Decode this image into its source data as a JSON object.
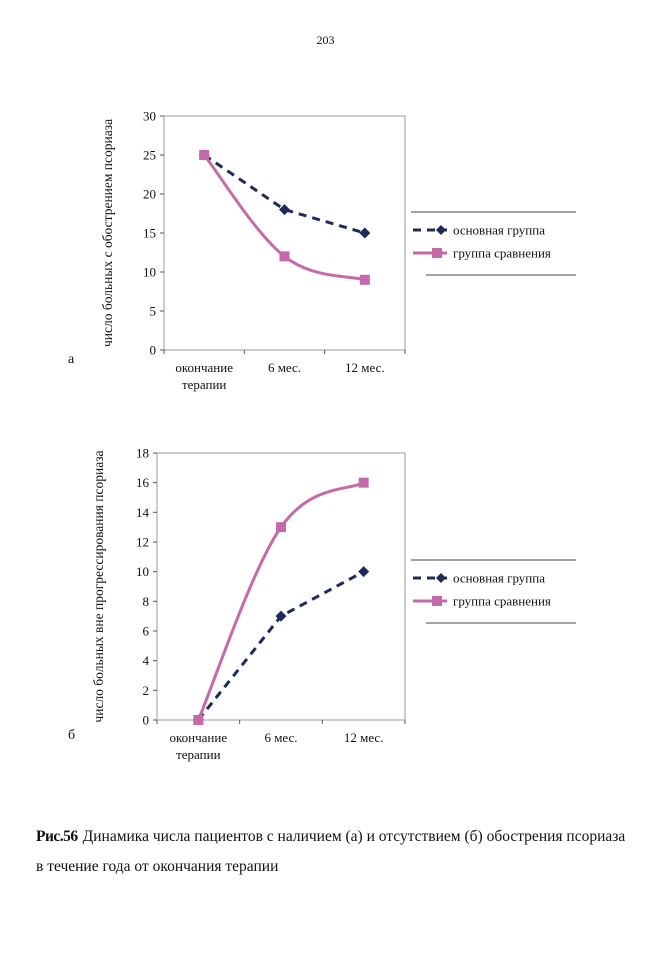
{
  "page_number": "203",
  "panel_labels": [
    "а",
    "б"
  ],
  "caption": {
    "figure": "Рис.56",
    "text": "Динамика числа пациентов с наличием (а) и отсутствием (б) обострения псориаза в течение года от окончания терапии"
  },
  "chart_data": [
    {
      "type": "line",
      "panel": "а",
      "ylabel": "число больных с обострением псориаза",
      "xlabel": "",
      "ylim": [
        0,
        30
      ],
      "yticks": [
        0,
        5,
        10,
        15,
        20,
        25,
        30
      ],
      "categories": [
        "окончание терапии",
        "6 мес.",
        "12 мес."
      ],
      "category_lines": [
        [
          "окончание",
          "терапии"
        ],
        [
          "6 мес."
        ],
        [
          "12 мес."
        ]
      ],
      "grid": false,
      "legend": "right",
      "series": [
        {
          "name": "основная группа",
          "values": [
            25,
            18,
            15
          ],
          "color": "#1f2a5a",
          "style": "dashed",
          "marker": "diamond"
        },
        {
          "name": "группа сравнения",
          "values": [
            25,
            12,
            9
          ],
          "color": "#c46aab",
          "style": "solid-smooth",
          "marker": "square"
        }
      ]
    },
    {
      "type": "line",
      "panel": "б",
      "ylabel": "число больных вне прогрессирования псориаза",
      "xlabel": "",
      "ylim": [
        0,
        18
      ],
      "yticks": [
        0,
        2,
        4,
        6,
        8,
        10,
        12,
        14,
        16,
        18
      ],
      "categories": [
        "окончание терапии",
        "6 мес.",
        "12 мес."
      ],
      "category_lines": [
        [
          "окончание",
          "терапии"
        ],
        [
          "6 мес."
        ],
        [
          "12 мес."
        ]
      ],
      "grid": false,
      "legend": "right",
      "series": [
        {
          "name": "основная группа",
          "values": [
            0,
            7,
            10
          ],
          "color": "#1f2a5a",
          "style": "dashed",
          "marker": "diamond"
        },
        {
          "name": "группа сравнения",
          "values": [
            0,
            13,
            16
          ],
          "color": "#c46aab",
          "style": "solid-smooth",
          "marker": "square"
        }
      ]
    }
  ]
}
